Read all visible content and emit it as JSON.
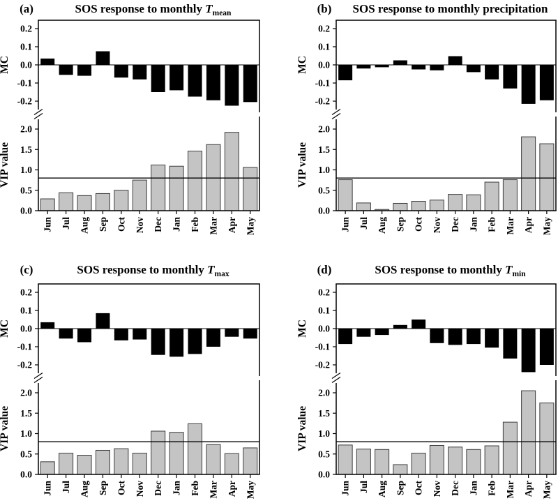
{
  "figure": {
    "y_axis_top_label": "MC",
    "y_axis_bottom_label": "VIP value",
    "vip_threshold": 0.8,
    "colors": {
      "mc_bar": "#000000",
      "vip_bar_fill": "#c4c4c4",
      "vip_bar_stroke": "#3c3c3c",
      "axis": "#000000",
      "background": "#ffffff"
    }
  },
  "chart_data": [
    {
      "type": "bar",
      "panel_label": "(a)",
      "title": "SOS response to monthly T_mean",
      "title_prefix": "SOS response to monthly ",
      "title_math_var": "T",
      "title_subscript": "mean",
      "categories": [
        "Jun",
        "Jul",
        "Aug",
        "Sep",
        "Oct",
        "Nov",
        "Dec",
        "Jan",
        "Feb",
        "Mar",
        "Apr",
        "May"
      ],
      "series": [
        {
          "name": "MC",
          "ylabel": "MC",
          "ylim": [
            -0.26,
            0.25
          ],
          "yticks": [
            0.2,
            0.1,
            0.0,
            -0.1,
            -0.2
          ],
          "values": [
            0.035,
            -0.055,
            -0.06,
            0.075,
            -0.07,
            -0.08,
            -0.15,
            -0.14,
            -0.175,
            -0.195,
            -0.225,
            -0.205
          ]
        },
        {
          "name": "VIP value",
          "ylabel": "VIP value",
          "ylim": [
            0,
            2.25
          ],
          "yticks": [
            2.0,
            1.5,
            1.0,
            0.5,
            0.0
          ],
          "reference_line": 0.8,
          "values": [
            0.29,
            0.44,
            0.37,
            0.42,
            0.5,
            0.75,
            1.12,
            1.09,
            1.46,
            1.62,
            1.92,
            1.06
          ]
        }
      ],
      "axis_break": true,
      "grid": false,
      "legend": false
    },
    {
      "type": "bar",
      "panel_label": "(b)",
      "title": "SOS response to monthly precipitation",
      "title_prefix": "SOS response to monthly precipitation",
      "title_math_var": "",
      "title_subscript": "",
      "categories": [
        "Jun",
        "Jul",
        "Aug",
        "Sep",
        "Oct",
        "Nov",
        "Dec",
        "Jan",
        "Feb",
        "Mar",
        "Apr",
        "May"
      ],
      "series": [
        {
          "name": "MC",
          "ylabel": "MC",
          "ylim": [
            -0.26,
            0.25
          ],
          "yticks": [
            0.2,
            0.1,
            0.0,
            -0.1,
            -0.2
          ],
          "values": [
            -0.085,
            -0.02,
            -0.013,
            0.025,
            -0.025,
            -0.03,
            0.048,
            -0.04,
            -0.08,
            -0.13,
            -0.215,
            -0.195
          ]
        },
        {
          "name": "VIP value",
          "ylabel": "VIP value",
          "ylim": [
            0,
            2.25
          ],
          "yticks": [
            2.0,
            1.5,
            1.0,
            0.5,
            0.0
          ],
          "reference_line": 0.8,
          "values": [
            0.76,
            0.19,
            0.03,
            0.18,
            0.23,
            0.26,
            0.4,
            0.39,
            0.7,
            0.76,
            1.81,
            1.64
          ]
        }
      ],
      "axis_break": true,
      "grid": false,
      "legend": false
    },
    {
      "type": "bar",
      "panel_label": "(c)",
      "title": "SOS response to monthly T_max",
      "title_prefix": "SOS response to monthly ",
      "title_math_var": "T",
      "title_subscript": "max",
      "categories": [
        "Jun",
        "Jul",
        "Aug",
        "Sep",
        "Oct",
        "Nov",
        "Dec",
        "Jan",
        "Feb",
        "Mar",
        "Apr",
        "May"
      ],
      "series": [
        {
          "name": "MC",
          "ylabel": "MC",
          "ylim": [
            -0.26,
            0.25
          ],
          "yticks": [
            0.2,
            0.1,
            0.0,
            -0.1,
            -0.2
          ],
          "values": [
            0.035,
            -0.055,
            -0.075,
            0.085,
            -0.065,
            -0.06,
            -0.145,
            -0.155,
            -0.14,
            -0.1,
            -0.045,
            -0.055
          ]
        },
        {
          "name": "VIP value",
          "ylabel": "VIP value",
          "ylim": [
            0,
            2.25
          ],
          "yticks": [
            2.0,
            1.5,
            1.0,
            0.5,
            0.0
          ],
          "reference_line": 0.8,
          "values": [
            0.31,
            0.52,
            0.47,
            0.59,
            0.63,
            0.52,
            1.06,
            1.03,
            1.24,
            0.73,
            0.51,
            0.65
          ]
        }
      ],
      "axis_break": true,
      "grid": false,
      "legend": false
    },
    {
      "type": "bar",
      "panel_label": "(d)",
      "title": "SOS response to monthly T_min",
      "title_prefix": "SOS response to monthly ",
      "title_math_var": "T",
      "title_subscript": "min",
      "categories": [
        "Jun",
        "Jul",
        "Aug",
        "Sep",
        "Oct",
        "Nov",
        "Dec",
        "Jan",
        "Feb",
        "Mar",
        "Apr",
        "May"
      ],
      "series": [
        {
          "name": "MC",
          "ylabel": "MC",
          "ylim": [
            -0.26,
            0.25
          ],
          "yticks": [
            0.2,
            0.1,
            0.0,
            -0.1,
            -0.2
          ],
          "values": [
            -0.085,
            -0.045,
            -0.035,
            0.02,
            0.05,
            -0.08,
            -0.09,
            -0.085,
            -0.105,
            -0.165,
            -0.24,
            -0.2
          ]
        },
        {
          "name": "VIP value",
          "ylabel": "VIP value",
          "ylim": [
            0,
            2.25
          ],
          "yticks": [
            2.0,
            1.5,
            1.0,
            0.5,
            0.0
          ],
          "reference_line": 0.8,
          "values": [
            0.72,
            0.62,
            0.61,
            0.24,
            0.52,
            0.71,
            0.67,
            0.61,
            0.7,
            1.28,
            2.05,
            1.75
          ]
        }
      ],
      "axis_break": true,
      "grid": false,
      "legend": false
    }
  ]
}
